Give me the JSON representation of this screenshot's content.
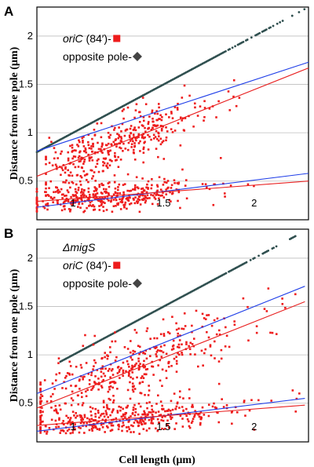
{
  "chart_data": [
    {
      "panel": "A",
      "type": "scatter",
      "xlabel": "",
      "ylabel": "Distance from one pole (µm)",
      "xlim": [
        0.8,
        2.3
      ],
      "ylim": [
        0.1,
        2.3
      ],
      "xticks": [
        "1",
        "1.5",
        "2"
      ],
      "yticks": [
        "0.5",
        "1",
        "1.5",
        "2"
      ],
      "grid": "horizontal",
      "legend": {
        "placement": "top-left",
        "title": "",
        "entries": [
          {
            "label_italic": "oriC",
            "label": " (84′)-",
            "marker": "square",
            "color": "#ee1c1c"
          },
          {
            "label_italic": "",
            "label": "opposite pole-",
            "marker": "diamond",
            "color": "#444444"
          }
        ]
      },
      "opposite_pole": {
        "x_range": [
          0.8,
          2.28
        ],
        "slope": 1.0,
        "intercept": 0.0,
        "color": "#2f4f4f"
      },
      "oriC_scatter": {
        "color": "#ee1c1c",
        "clusters": [
          {
            "name": "upper",
            "x_range": [
              0.85,
              2.0
            ],
            "slope": 0.78,
            "intercept": -0.08,
            "spread": 0.14
          },
          {
            "name": "lower",
            "x_range": [
              0.8,
              2.0
            ],
            "slope": 0.16,
            "intercept": 0.14,
            "spread": 0.07
          }
        ]
      },
      "fit_lines": [
        {
          "color": "#1f3ee8",
          "x": [
            0.8,
            2.3
          ],
          "y": [
            0.81,
            1.73
          ]
        },
        {
          "color": "#e81e1e",
          "x": [
            0.8,
            2.3
          ],
          "y": [
            0.55,
            1.67
          ]
        },
        {
          "color": "#1f3ee8",
          "x": [
            0.8,
            2.3
          ],
          "y": [
            0.23,
            0.58
          ]
        },
        {
          "color": "#e81e1e",
          "x": [
            0.8,
            2.3
          ],
          "y": [
            0.29,
            0.5
          ]
        }
      ]
    },
    {
      "panel": "B",
      "type": "scatter",
      "xlabel": "Cell length (µm)",
      "ylabel": "Distance from one pole (µm)",
      "xlim": [
        0.8,
        2.3
      ],
      "ylim": [
        0.1,
        2.3
      ],
      "xticks": [
        "1",
        "1.5",
        "2"
      ],
      "yticks": [
        "0.5",
        "1",
        "1.5",
        "2"
      ],
      "grid": "horizontal",
      "legend": {
        "placement": "top-left",
        "title": "ΔmigS",
        "entries": [
          {
            "label_italic": "oriC",
            "label": " (84′)-",
            "marker": "square",
            "color": "#ee1c1c"
          },
          {
            "label_italic": "",
            "label": "opposite pole-",
            "marker": "diamond",
            "color": "#444444"
          }
        ]
      },
      "opposite_pole": {
        "x_range": [
          0.93,
          2.28
        ],
        "slope": 1.0,
        "intercept": 0.0,
        "color": "#2f4f4f"
      },
      "oriC_scatter": {
        "color": "#ee1c1c",
        "clusters": [
          {
            "name": "upper",
            "x_range": [
              0.82,
              2.28
            ],
            "slope": 0.74,
            "intercept": -0.07,
            "spread": 0.15
          },
          {
            "name": "lower",
            "x_range": [
              0.82,
              2.28
            ],
            "slope": 0.17,
            "intercept": 0.12,
            "spread": 0.08
          }
        ]
      },
      "fit_lines": [
        {
          "color": "#1f3ee8",
          "x": [
            0.8,
            2.28
          ],
          "y": [
            0.6,
            1.71
          ]
        },
        {
          "color": "#e81e1e",
          "x": [
            0.8,
            2.28
          ],
          "y": [
            0.45,
            1.55
          ]
        },
        {
          "color": "#1f3ee8",
          "x": [
            0.8,
            2.28
          ],
          "y": [
            0.21,
            0.55
          ]
        },
        {
          "color": "#e81e1e",
          "x": [
            0.8,
            2.28
          ],
          "y": [
            0.27,
            0.48
          ]
        }
      ]
    }
  ]
}
